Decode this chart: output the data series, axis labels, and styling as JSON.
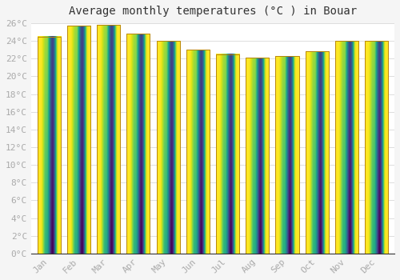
{
  "title": "Average monthly temperatures (°C ) in Bouar",
  "months": [
    "Jan",
    "Feb",
    "Mar",
    "Apr",
    "May",
    "Jun",
    "Jul",
    "Aug",
    "Sep",
    "Oct",
    "Nov",
    "Dec"
  ],
  "values": [
    24.5,
    25.7,
    25.8,
    24.8,
    24.0,
    23.0,
    22.5,
    22.1,
    22.3,
    22.8,
    24.0,
    24.0
  ],
  "bar_color_top": "#FDD835",
  "bar_color_bottom": "#FFA000",
  "bar_edge_color": "#B8860B",
  "background_color": "#F5F5F5",
  "plot_bg_color": "#FFFFFF",
  "grid_color": "#DDDDDD",
  "ylim": [
    0,
    26
  ],
  "ytick_step": 2,
  "title_fontsize": 10,
  "tick_fontsize": 8,
  "tick_color": "#AAAAAA",
  "font_family": "monospace"
}
